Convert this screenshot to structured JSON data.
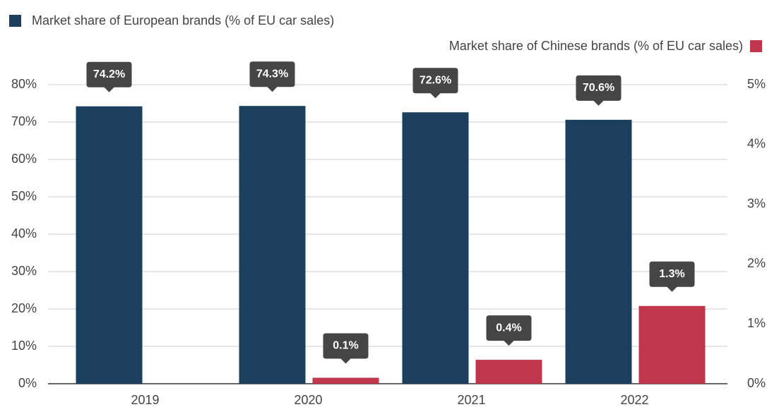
{
  "chart_data": {
    "type": "bar",
    "categories": [
      "2019",
      "2020",
      "2021",
      "2022"
    ],
    "series": [
      {
        "name": "Market share of European brands (% of EU car sales)",
        "color": "#1b3f5c",
        "values": [
          74.2,
          74.3,
          72.6,
          70.6
        ],
        "value_labels": [
          "74.2%",
          "74.3%",
          "72.6%",
          "70.6%"
        ]
      },
      {
        "name": "Market share of Chinese brands (% of EU car sales)",
        "color": "#c0364a",
        "axis": "y2",
        "values": [
          null,
          0.1,
          0.4,
          1.3
        ],
        "value_labels": [
          null,
          "0.1%",
          "0.4%",
          "1.3%"
        ]
      }
    ],
    "ylim": [
      0,
      80
    ],
    "yticks": [
      {
        "value": 0,
        "label": "0%"
      },
      {
        "value": 10,
        "label": "10%"
      },
      {
        "value": 20,
        "label": "20%"
      },
      {
        "value": 30,
        "label": "30%"
      },
      {
        "value": 40,
        "label": "40%"
      },
      {
        "value": 50,
        "label": "50%"
      },
      {
        "value": 60,
        "label": "60%"
      },
      {
        "value": 70,
        "label": "70%"
      },
      {
        "value": 80,
        "label": "80%"
      }
    ],
    "y2lim": [
      0,
      5
    ],
    "y2ticks": [
      {
        "value": 0,
        "label": "0%"
      },
      {
        "value": 1,
        "label": "1%"
      },
      {
        "value": 2,
        "label": "2%"
      },
      {
        "value": 3,
        "label": "3%"
      },
      {
        "value": 4,
        "label": "4%"
      },
      {
        "value": 5,
        "label": "5%"
      }
    ],
    "grid": true
  }
}
